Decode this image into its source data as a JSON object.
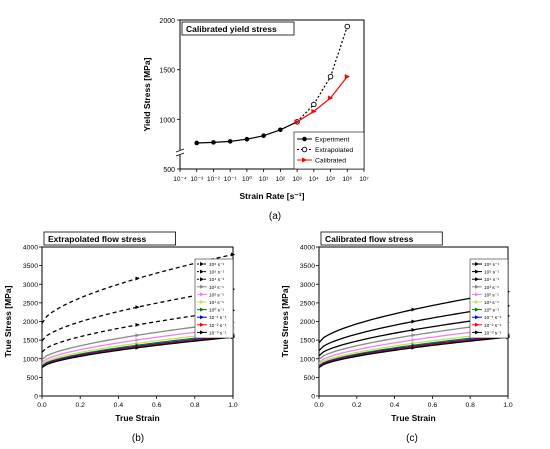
{
  "panels": {
    "a": {
      "caption": "(a)"
    },
    "b": {
      "caption": "(b)"
    },
    "c": {
      "caption": "(c)"
    }
  },
  "chart_data": [
    {
      "id": "a",
      "type": "line",
      "title": "Calibrated yield stress",
      "xlabel": "Strain Rate [s⁻¹]",
      "ylabel": "Yield Stress [MPa]",
      "xscale": "log",
      "xlim_exp": [
        -4,
        7
      ],
      "xticks": [
        "10⁻⁴",
        "10⁻³",
        "10⁻²",
        "10⁻¹",
        "10⁰",
        "10¹",
        "10²",
        "10³",
        "10⁴",
        "10⁵",
        "10⁶",
        "10⁷"
      ],
      "ylim": [
        500,
        2000
      ],
      "yticks": [
        500,
        1000,
        1500,
        2000
      ],
      "axis_break": true,
      "legend_position": "bottom-right",
      "series": [
        {
          "name": "Experiment",
          "color": "#000000",
          "style": "solid",
          "marker": "filled-circle",
          "x": [
            0.001,
            0.01,
            0.1,
            1,
            10,
            100,
            1000
          ],
          "y": [
            762,
            768,
            778,
            800,
            835,
            895,
            975
          ]
        },
        {
          "name": "Extrapolated",
          "color": "#000000",
          "style": "dotted",
          "marker": "open-circle",
          "x": [
            1000,
            10000,
            100000,
            1000000
          ],
          "y": [
            975,
            1150,
            1430,
            1935
          ]
        },
        {
          "name": "Calibrated",
          "color": "#ff0000",
          "style": "solid",
          "marker": "triangle-right",
          "x": [
            1000,
            10000,
            100000,
            1000000
          ],
          "y": [
            975,
            1080,
            1215,
            1430
          ]
        }
      ]
    },
    {
      "id": "b",
      "type": "line",
      "title": "Extrapolated flow stress",
      "xlabel": "True Strain",
      "ylabel": "True Stress [MPa]",
      "xlim": [
        0,
        1
      ],
      "xticks": [
        "0.0",
        "0.2",
        "0.4",
        "0.6",
        "0.8",
        "1.0"
      ],
      "ylim": [
        0,
        4000
      ],
      "yticks": [
        "0",
        "500",
        "1000",
        "1500",
        "2000",
        "2500",
        "3000",
        "3500",
        "4000"
      ],
      "legend_position": "top-right",
      "series": [
        {
          "name": "10⁶ s⁻¹",
          "color": "#000000",
          "style": "dashed",
          "y0": 1950,
          "y1": 3800
        },
        {
          "name": "10⁵ s⁻¹",
          "color": "#000000",
          "style": "dashed",
          "y0": 1480,
          "y1": 2870
        },
        {
          "name": "10⁴ s⁻¹",
          "color": "#000000",
          "style": "dashed",
          "y0": 1180,
          "y1": 2300
        },
        {
          "name": "10³ s⁻¹",
          "color": "#888888",
          "style": "solid",
          "y0": 980,
          "y1": 1980
        },
        {
          "name": "10² s⁻¹",
          "color": "#ee82ee",
          "style": "solid",
          "y0": 900,
          "y1": 1830
        },
        {
          "name": "10¹ s⁻¹",
          "color": "#ccdd66",
          "style": "solid",
          "y0": 850,
          "y1": 1720
        },
        {
          "name": "10⁰ s⁻¹",
          "color": "#008000",
          "style": "solid",
          "y0": 810,
          "y1": 1660
        },
        {
          "name": "10⁻¹ s⁻¹",
          "color": "#0000ff",
          "style": "solid",
          "y0": 790,
          "y1": 1620
        },
        {
          "name": "10⁻² s⁻¹",
          "color": "#ff0000",
          "style": "solid",
          "y0": 775,
          "y1": 1600
        },
        {
          "name": "10⁻³ s⁻¹",
          "color": "#000000",
          "style": "solid",
          "y0": 765,
          "y1": 1580
        }
      ]
    },
    {
      "id": "c",
      "type": "line",
      "title": "Calibrated flow stress",
      "xlabel": "True Strain",
      "ylabel": "True Stress [MPa]",
      "xlim": [
        0,
        1
      ],
      "xticks": [
        "0.0",
        "0.2",
        "0.4",
        "0.6",
        "0.8",
        "1.0"
      ],
      "ylim": [
        0,
        4000
      ],
      "yticks": [
        "0",
        "500",
        "1000",
        "1500",
        "2000",
        "2500",
        "3000",
        "3500",
        "4000"
      ],
      "legend_position": "top-right",
      "series": [
        {
          "name": "10⁶ s⁻¹",
          "color": "#000000",
          "style": "solid",
          "y0": 1430,
          "y1": 2800
        },
        {
          "name": "10⁵ s⁻¹",
          "color": "#000000",
          "style": "solid",
          "y0": 1220,
          "y1": 2420
        },
        {
          "name": "10⁴ s⁻¹",
          "color": "#000000",
          "style": "solid",
          "y0": 1080,
          "y1": 2150
        },
        {
          "name": "10³ s⁻¹",
          "color": "#888888",
          "style": "solid",
          "y0": 980,
          "y1": 1980
        },
        {
          "name": "10² s⁻¹",
          "color": "#ee82ee",
          "style": "solid",
          "y0": 900,
          "y1": 1830
        },
        {
          "name": "10¹ s⁻¹",
          "color": "#ccdd66",
          "style": "solid",
          "y0": 850,
          "y1": 1720
        },
        {
          "name": "10⁰ s⁻¹",
          "color": "#008000",
          "style": "solid",
          "y0": 810,
          "y1": 1660
        },
        {
          "name": "10⁻¹ s⁻¹",
          "color": "#0000ff",
          "style": "solid",
          "y0": 790,
          "y1": 1620
        },
        {
          "name": "10⁻² s⁻¹",
          "color": "#ff0000",
          "style": "solid",
          "y0": 775,
          "y1": 1600
        },
        {
          "name": "10⁻³ s⁻¹",
          "color": "#000000",
          "style": "solid",
          "y0": 765,
          "y1": 1580
        }
      ]
    }
  ]
}
